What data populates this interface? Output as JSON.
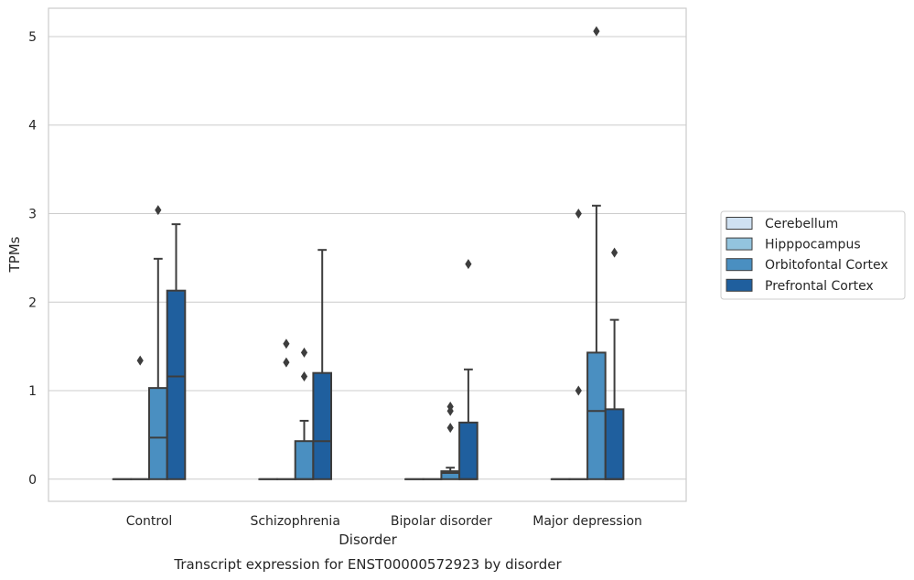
{
  "caption": "Transcript expression for ENST00000572923 by disorder",
  "chart_data": {
    "type": "boxplot",
    "xlabel": "Disorder",
    "ylabel": "TPMs",
    "ylim": [
      -0.25,
      5.32
    ],
    "yticks": [
      0,
      1,
      2,
      3,
      4,
      5
    ],
    "grid": "horizontal",
    "legend_placement": "right",
    "categories": [
      "Control",
      "Schizophrenia",
      "Bipolar disorder",
      "Major depression"
    ],
    "series": [
      {
        "name": "Cerebellum",
        "color": "#cfe1f2",
        "boxes": [
          {
            "min": 0,
            "q1": 0,
            "median": 0,
            "q3": 0,
            "max": 0,
            "outliers": []
          },
          {
            "min": 0,
            "q1": 0,
            "median": 0,
            "q3": 0,
            "max": 0,
            "outliers": []
          },
          {
            "min": 0,
            "q1": 0,
            "median": 0,
            "q3": 0,
            "max": 0,
            "outliers": []
          },
          {
            "min": 0,
            "q1": 0,
            "median": 0,
            "q3": 0,
            "max": 0,
            "outliers": []
          }
        ]
      },
      {
        "name": "Hipppocampus",
        "color": "#93c4de",
        "boxes": [
          {
            "min": 0,
            "q1": 0,
            "median": 0,
            "q3": 0,
            "max": 0,
            "outliers": [
              1.34
            ]
          },
          {
            "min": 0,
            "q1": 0,
            "median": 0,
            "q3": 0,
            "max": 0,
            "outliers": [
              1.32,
              1.53
            ]
          },
          {
            "min": 0,
            "q1": 0,
            "median": 0,
            "q3": 0,
            "max": 0,
            "outliers": []
          },
          {
            "min": 0,
            "q1": 0,
            "median": 0,
            "q3": 0,
            "max": 0,
            "outliers": [
              1.0,
              3.0
            ]
          }
        ]
      },
      {
        "name": "Orbitofontal Cortex",
        "color": "#4a8fc1",
        "boxes": [
          {
            "min": 0,
            "q1": 0,
            "median": 0.47,
            "q3": 1.03,
            "max": 2.49,
            "outliers": [
              3.04
            ]
          },
          {
            "min": 0,
            "q1": 0,
            "median": 0,
            "q3": 0.43,
            "max": 0.66,
            "outliers": [
              1.16,
              1.43
            ]
          },
          {
            "min": 0,
            "q1": 0,
            "median": 0.07,
            "q3": 0.09,
            "max": 0.13,
            "outliers": [
              0.58,
              0.77,
              0.82
            ]
          },
          {
            "min": 0,
            "q1": 0,
            "median": 0.77,
            "q3": 1.43,
            "max": 3.09,
            "outliers": [
              5.06
            ]
          }
        ]
      },
      {
        "name": "Prefrontal Cortex",
        "color": "#1f5f9e",
        "boxes": [
          {
            "min": 0,
            "q1": 0,
            "median": 1.16,
            "q3": 2.13,
            "max": 2.88,
            "outliers": []
          },
          {
            "min": 0,
            "q1": 0,
            "median": 0.43,
            "q3": 1.2,
            "max": 2.59,
            "outliers": []
          },
          {
            "min": 0,
            "q1": 0,
            "median": 0,
            "q3": 0.64,
            "max": 1.24,
            "outliers": [
              2.43
            ]
          },
          {
            "min": 0,
            "q1": 0,
            "median": 0,
            "q3": 0.79,
            "max": 1.8,
            "outliers": [
              2.56
            ]
          }
        ]
      }
    ]
  }
}
